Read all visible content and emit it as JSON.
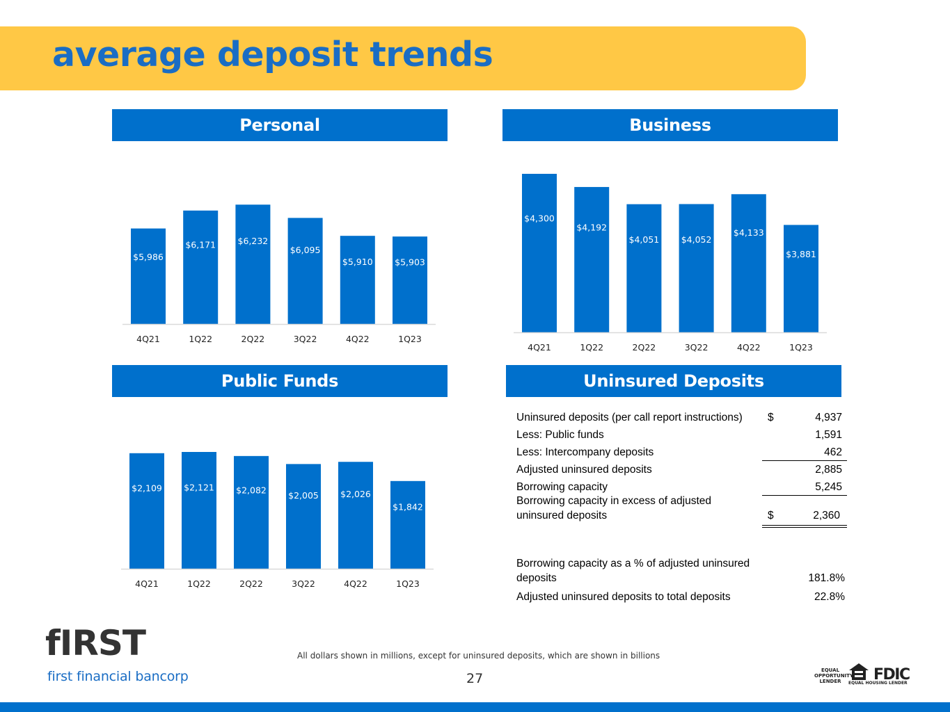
{
  "page": {
    "title": "average deposit trends",
    "footnote": "All dollars shown in millions, except for uninsured deposits, which are shown in billions",
    "page_number": "27",
    "logo_word": "fIRST",
    "logo_subtitle": "first financial bancorp",
    "equal_lender": [
      "EQUAL",
      "OPPORTUNITY",
      "LENDER"
    ],
    "equal_housing": "EQUAL HOUSING LENDER",
    "fdic": "FDIC"
  },
  "colors": {
    "accent": "#0070cc",
    "band": "#ffc845",
    "title": "#1a6dc4"
  },
  "panels": {
    "personal": "Personal",
    "business": "Business",
    "public": "Public Funds",
    "uninsured": "Uninsured Deposits"
  },
  "chart_data": [
    {
      "id": "personal",
      "type": "bar",
      "title": "Personal",
      "categories": [
        "4Q21",
        "1Q22",
        "2Q22",
        "3Q22",
        "4Q22",
        "1Q23"
      ],
      "values": [
        5986,
        6171,
        6232,
        6095,
        5910,
        5903
      ],
      "labels": [
        "$5,986",
        "$6,171",
        "$6,232",
        "$6,095",
        "$5,910",
        "$5,903"
      ],
      "ylim": [
        5000,
        6550
      ],
      "xlabel": "",
      "ylabel": "",
      "grid": false
    },
    {
      "id": "business",
      "type": "bar",
      "title": "Business",
      "categories": [
        "4Q21",
        "1Q22",
        "2Q22",
        "3Q22",
        "4Q22",
        "1Q23"
      ],
      "values": [
        4300,
        4192,
        4051,
        4052,
        4133,
        3881
      ],
      "labels": [
        "$4,300",
        "$4,192",
        "$4,051",
        "$4,052",
        "$4,133",
        "$3,881"
      ],
      "ylim": [
        3000,
        4300
      ],
      "xlabel": "",
      "ylabel": "",
      "grid": false
    },
    {
      "id": "public",
      "type": "bar",
      "title": "Public Funds",
      "categories": [
        "4Q21",
        "1Q22",
        "2Q22",
        "3Q22",
        "4Q22",
        "1Q23"
      ],
      "values": [
        2109,
        2121,
        2082,
        2005,
        2026,
        1842
      ],
      "labels": [
        "$2,109",
        "$2,121",
        "$2,082",
        "$2,005",
        "$2,026",
        "$1,842"
      ],
      "ylim": [
        1000,
        2121
      ],
      "xlabel": "",
      "ylabel": "",
      "grid": false
    }
  ],
  "uninsured": {
    "rows": [
      {
        "label": "Uninsured deposits (per call report instructions)",
        "cur": "$",
        "value": "4,937"
      },
      {
        "label": "Less: Public funds",
        "cur": "",
        "value": "1,591"
      },
      {
        "label": "Less: Intercompany deposits",
        "cur": "",
        "value": "462"
      },
      {
        "label": "Adjusted uninsured deposits",
        "cur": "",
        "value": "2,885"
      },
      {
        "label": "Borrowing capacity",
        "cur": "",
        "value": "5,245"
      }
    ],
    "excess": {
      "label1": "Borrowing capacity in excess of adjusted",
      "label2": "uninsured deposits",
      "cur": "$",
      "value": "2,360"
    },
    "pct": {
      "label1": "Borrowing capacity as a % of adjusted uninsured",
      "label2": "deposits",
      "value": "181.8%"
    },
    "ratio": {
      "label": "Adjusted uninsured deposits to total deposits",
      "value": "22.8%"
    }
  }
}
